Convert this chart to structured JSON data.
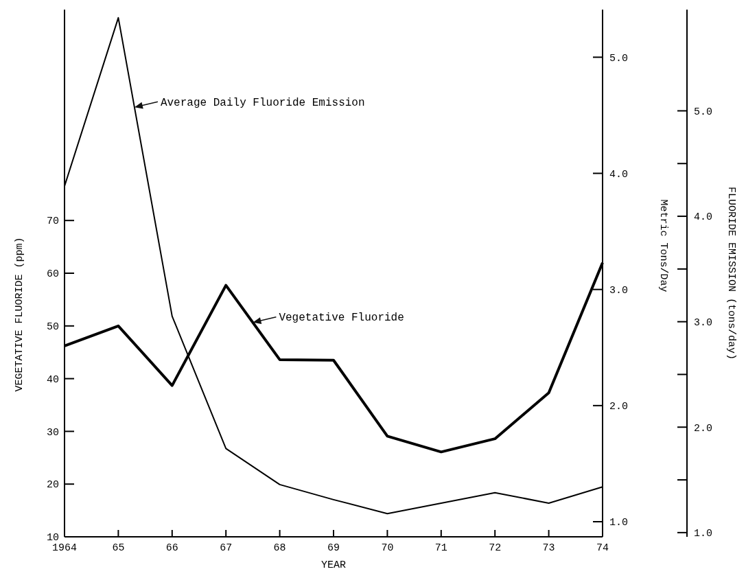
{
  "chart_data": {
    "type": "line",
    "xlabel": "YEAR",
    "ylabel": "VEGETATIVE FLUORIDE (ppm)",
    "y2label": "Metric Tons/Day",
    "y3label": "FLUORIDE EMISSION (tons/day)",
    "categories": [
      "1964",
      "65",
      "66",
      "67",
      "68",
      "69",
      "70",
      "71",
      "72",
      "73",
      "74"
    ],
    "ylim": [
      10,
      110
    ],
    "yticks": [
      10,
      20,
      30,
      40,
      50,
      60,
      70
    ],
    "y2lim": [
      0.87,
      5.41
    ],
    "y2ticks": [
      {
        "value": 1,
        "label": "1.0"
      },
      {
        "value": 2,
        "label": "2.0"
      },
      {
        "value": 3,
        "label": "3.0"
      },
      {
        "value": 4,
        "label": "4.0"
      },
      {
        "value": 5,
        "label": "5.0"
      }
    ],
    "y3lim": [
      0.96,
      5.96
    ],
    "y3ticks": [
      {
        "value": 1,
        "label": "1.0"
      },
      {
        "value": 2,
        "label": "2.0"
      },
      {
        "value": 3,
        "label": "3.0"
      },
      {
        "value": 4,
        "label": "4.0"
      },
      {
        "value": 5,
        "label": "5.0"
      }
    ],
    "series": [
      {
        "name": "Vegetative Fluoride",
        "color": "#000000",
        "values": [
          46.2,
          50,
          38.7,
          57.7,
          43.6,
          43.5,
          29.1,
          26.1,
          28.6,
          37.3,
          62
        ]
      },
      {
        "name": "Average Daily Fluoride Emission",
        "color": "#000000",
        "axis": "y2",
        "values": [
          3.89,
          5.34,
          2.77,
          1.63,
          1.32,
          1.19,
          1.07,
          1.16,
          1.25,
          1.16,
          1.3
        ]
      }
    ],
    "grid": false,
    "marker": "none",
    "line_style": "solid"
  }
}
